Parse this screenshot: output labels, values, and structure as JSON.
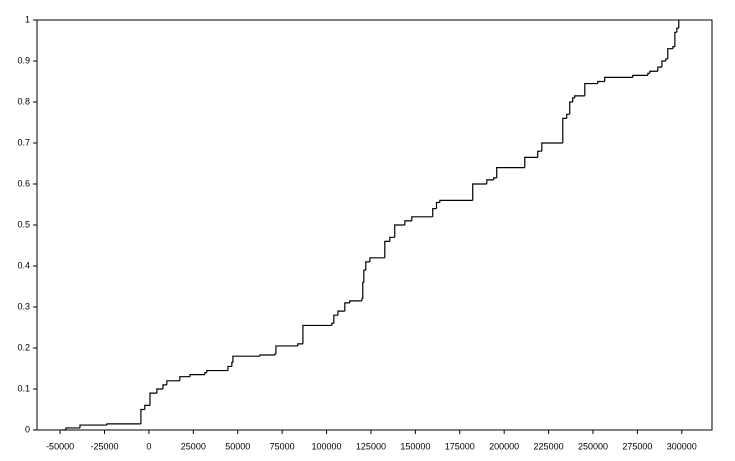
{
  "chart_data": {
    "type": "line",
    "step": "post",
    "color": "#000000",
    "x": [
      -49000,
      -46700,
      -38800,
      -23600,
      -4500,
      -2300,
      600,
      4500,
      7900,
      10100,
      17400,
      23100,
      31500,
      32600,
      44500,
      46700,
      47300,
      62500,
      70900,
      71500,
      83800,
      86700,
      103000,
      104100,
      106400,
      110300,
      113100,
      119900,
      120400,
      121000,
      122100,
      124400,
      132800,
      135600,
      138400,
      144100,
      148000,
      159800,
      161900,
      163800,
      182300,
      190200,
      194100,
      195800,
      211600,
      218900,
      221200,
      233000,
      235200,
      236900,
      238600,
      239700,
      245400,
      252700,
      256600,
      272400,
      280900,
      282000,
      286500,
      288800,
      291000,
      292100,
      295000,
      296100,
      297200,
      298300
    ],
    "values": [
      0,
      0.005,
      0.012,
      0.015,
      0.05,
      0.06,
      0.09,
      0.1,
      0.11,
      0.12,
      0.13,
      0.135,
      0.14,
      0.145,
      0.155,
      0.165,
      0.18,
      0.183,
      0.185,
      0.205,
      0.21,
      0.255,
      0.26,
      0.28,
      0.29,
      0.31,
      0.315,
      0.32,
      0.36,
      0.39,
      0.41,
      0.42,
      0.46,
      0.47,
      0.5,
      0.51,
      0.52,
      0.54,
      0.555,
      0.56,
      0.6,
      0.61,
      0.615,
      0.64,
      0.665,
      0.68,
      0.7,
      0.76,
      0.77,
      0.8,
      0.81,
      0.815,
      0.845,
      0.85,
      0.86,
      0.865,
      0.87,
      0.875,
      0.885,
      0.9,
      0.905,
      0.93,
      0.935,
      0.97,
      0.98,
      1
    ],
    "xlim": [
      -63000,
      317000
    ],
    "ylim": [
      0,
      1
    ],
    "xticks": [
      -50000,
      -25000,
      0,
      25000,
      50000,
      75000,
      100000,
      125000,
      150000,
      175000,
      200000,
      225000,
      250000,
      275000,
      300000
    ],
    "yticks": [
      0,
      0.1,
      0.2,
      0.3,
      0.4,
      0.5,
      0.6,
      0.7,
      0.8,
      0.9,
      1
    ]
  }
}
